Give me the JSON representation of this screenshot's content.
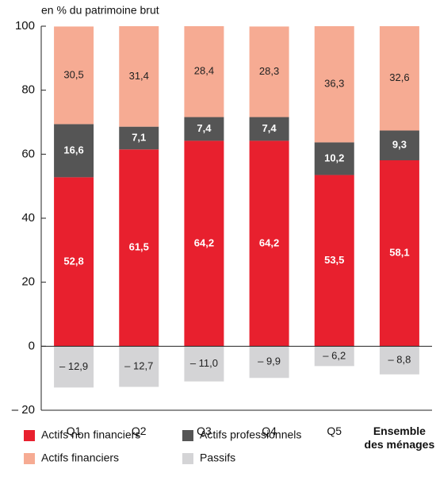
{
  "chart_data": {
    "type": "stacked_bar",
    "y_axis_label": "en % du patrimoine brut",
    "categories": [
      "Q1",
      "Q2",
      "Q3",
      "Q4",
      "Q5",
      "Ensemble des ménages"
    ],
    "series": [
      {
        "name": "Actifs non financiers",
        "color": "#e8202e",
        "label_color": "#ffffff",
        "values": [
          52.8,
          61.5,
          64.2,
          64.2,
          53.5,
          58.1
        ],
        "value_labels": [
          "52,8",
          "61,5",
          "64,2",
          "64,2",
          "53,5",
          "58,1"
        ]
      },
      {
        "name": "Actifs professionnels",
        "color": "#555555",
        "label_color": "#ffffff",
        "values": [
          16.6,
          7.1,
          7.4,
          7.4,
          10.2,
          9.3
        ],
        "value_labels": [
          "16,6",
          "7,1",
          "7,4",
          "7,4",
          "10,2",
          "9,3"
        ]
      },
      {
        "name": "Actifs financiers",
        "color": "#f6ab93",
        "label_color": "#222222",
        "values": [
          30.5,
          31.4,
          28.4,
          28.3,
          36.3,
          32.6
        ],
        "value_labels": [
          "30,5",
          "31,4",
          "28,4",
          "28,3",
          "36,3",
          "32,6"
        ]
      },
      {
        "name": "Passifs",
        "color": "#d4d4d6",
        "label_color": "#222222",
        "values": [
          -12.9,
          -12.7,
          -11.0,
          -9.9,
          -6.2,
          -8.8
        ],
        "value_labels": [
          "– 12,9",
          "– 12,7",
          "– 11,0",
          "– 9,9",
          "– 6,2",
          "– 8,8"
        ]
      }
    ],
    "ylim": [
      -20,
      100
    ],
    "yticks": [
      {
        "value": -20,
        "label": "– 20"
      },
      0,
      20,
      40,
      60,
      80,
      100
    ]
  }
}
